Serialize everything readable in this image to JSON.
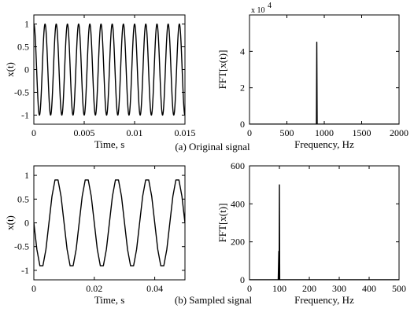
{
  "captions": {
    "a": "(a) Original signal",
    "b": "(b) Sampled signal"
  },
  "colors": {
    "line": "#000000",
    "axes": "#000000",
    "background": "#ffffff"
  },
  "chart_data": [
    {
      "id": "a-time",
      "type": "line",
      "xlabel": "Time, s",
      "ylabel": "x(t)",
      "xlim": [
        0,
        0.015
      ],
      "ylim": [
        -1.2,
        1.2
      ],
      "xticks": [
        0,
        0.005,
        0.01,
        0.015
      ],
      "xtick_labels": [
        "0",
        "0.005",
        "0.01",
        "0.015"
      ],
      "yticks": [
        -1,
        -0.5,
        0,
        0.5,
        1
      ],
      "ytick_labels": [
        "-1",
        "-0.5",
        "0",
        "0.5",
        "1"
      ],
      "series": [
        {
          "function": "cos",
          "frequency_hz": 900,
          "amplitude": 1,
          "phase_rad": 0
        }
      ]
    },
    {
      "id": "a-fft",
      "type": "line",
      "xlabel": "Frequency, Hz",
      "ylabel": "FFT[x(t)]",
      "xlim": [
        0,
        2000
      ],
      "ylim": [
        0,
        60000
      ],
      "scale_label": "x 10",
      "scale_exponent": "4",
      "xticks": [
        0,
        500,
        1000,
        1500,
        2000
      ],
      "xtick_labels": [
        "0",
        "500",
        "1000",
        "1500",
        "2000"
      ],
      "yticks": [
        0,
        20000,
        40000
      ],
      "ytick_labels": [
        "0",
        "2",
        "4"
      ],
      "series": [
        {
          "x": [
            0,
            895,
            900,
            905,
            2000
          ],
          "y": [
            0,
            0,
            45000,
            0,
            0
          ]
        }
      ]
    },
    {
      "id": "b-time",
      "type": "line",
      "xlabel": "Time, s",
      "ylabel": "x(t)",
      "xlim": [
        0,
        0.05
      ],
      "ylim": [
        -1.2,
        1.2
      ],
      "xticks": [
        0,
        0.02,
        0.04
      ],
      "xtick_labels": [
        "0",
        "0.02",
        "0.04"
      ],
      "yticks": [
        -1,
        -0.5,
        0,
        0.5,
        1
      ],
      "ytick_labels": [
        "-1",
        "-0.5",
        "0",
        "0.5",
        "1"
      ],
      "series": [
        {
          "function": "sin",
          "frequency_hz": 100,
          "amplitude": 0.95,
          "phase_rad": 3.1416,
          "sample_rate_hz": 1000
        }
      ]
    },
    {
      "id": "b-fft",
      "type": "line",
      "xlabel": "Frequency, Hz",
      "ylabel": "FFT[x(t)]",
      "xlim": [
        0,
        500
      ],
      "ylim": [
        0,
        600
      ],
      "xticks": [
        0,
        100,
        200,
        300,
        400,
        500
      ],
      "xtick_labels": [
        "0",
        "100",
        "200",
        "300",
        "400",
        "500"
      ],
      "yticks": [
        0,
        200,
        400,
        600
      ],
      "ytick_labels": [
        "0",
        "200",
        "400",
        "600"
      ],
      "series": [
        {
          "x": [
            0,
            96,
            98,
            99,
            100,
            101,
            500
          ],
          "y": [
            0,
            0,
            150,
            0,
            500,
            0,
            0
          ]
        }
      ]
    }
  ]
}
